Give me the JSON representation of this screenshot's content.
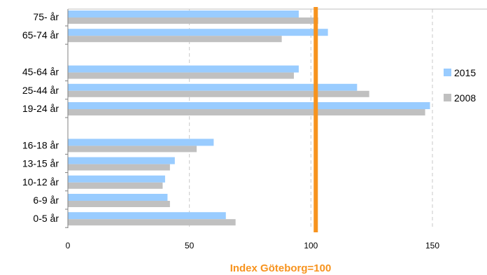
{
  "chart_data": {
    "type": "bar",
    "orientation": "horizontal",
    "categories": [
      "75- år",
      "65-74 år",
      "45-64 år",
      "25-44 år",
      "19-24 år",
      "16-18 år",
      "13-15 år",
      "10-12 år",
      "6-9 år",
      "0-5 år"
    ],
    "group_gaps_after": [
      1,
      4
    ],
    "series": [
      {
        "name": "2015",
        "color": "#99ccff",
        "values": [
          95,
          107,
          95,
          119,
          149,
          60,
          44,
          40,
          41,
          65
        ]
      },
      {
        "name": "2008",
        "color": "#c0c0c0",
        "values": [
          103,
          88,
          93,
          124,
          147,
          53,
          42,
          39,
          42,
          69
        ]
      }
    ],
    "reference_line": {
      "value": 102,
      "color": "#f7931e"
    },
    "xticks": [
      0,
      50,
      100,
      150
    ],
    "xlim": [
      0,
      173
    ],
    "xlabel": "Index Göteborg=100",
    "grid": "vertical dashed",
    "legend_position": "right"
  }
}
